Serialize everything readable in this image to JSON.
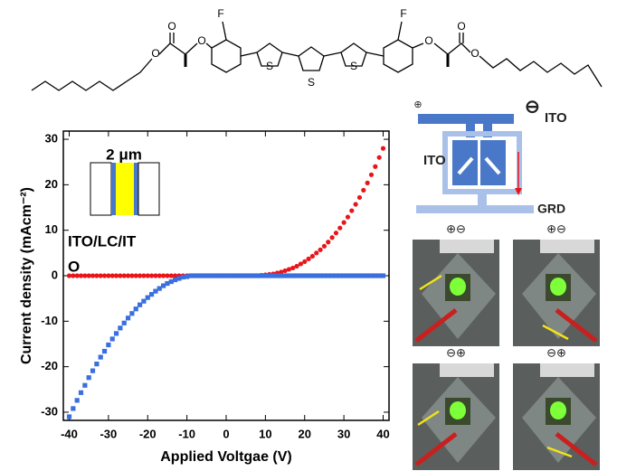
{
  "chart_data": {
    "type": "scatter",
    "xlabel": "Applied Voltgae (V)",
    "ylabel": "Current density (mAcm⁻²)",
    "inset_labels": [
      "2 μm",
      "ITO/LC/IT",
      "O"
    ],
    "x": [
      -40,
      -39,
      -38,
      -37,
      -36,
      -35,
      -34,
      -33,
      -32,
      -31,
      -30,
      -29,
      -28,
      -27,
      -26,
      -25,
      -24,
      -23,
      -22,
      -21,
      -20,
      -19,
      -18,
      -17,
      -16,
      -15,
      -14,
      -13,
      -12,
      -11,
      -10,
      -9,
      -8,
      -7,
      -6,
      -5,
      -4,
      -3,
      -2,
      -1,
      0,
      1,
      2,
      3,
      4,
      5,
      6,
      7,
      8,
      9,
      10,
      11,
      12,
      13,
      14,
      15,
      16,
      17,
      18,
      19,
      20,
      21,
      22,
      23,
      24,
      25,
      26,
      27,
      28,
      29,
      30,
      31,
      32,
      33,
      34,
      35,
      36,
      37,
      38,
      39,
      40
    ],
    "series": [
      {
        "color": "#e8151b",
        "marker": "circle",
        "values": [
          0,
          0,
          0,
          0,
          0,
          0,
          0,
          0,
          0,
          0,
          0,
          0,
          0,
          0,
          0,
          0,
          0,
          0,
          0,
          0,
          0,
          0,
          0,
          0,
          0,
          0,
          0,
          0,
          0,
          0,
          0,
          0,
          0,
          0,
          0,
          0,
          0,
          0,
          0,
          0,
          0,
          0,
          0,
          0,
          0,
          0,
          0,
          0,
          0,
          0.1,
          0.2,
          0.3,
          0.4,
          0.6,
          0.8,
          1.1,
          1.4,
          1.7,
          2.1,
          2.6,
          3.1,
          3.7,
          4.3,
          5.0,
          5.7,
          6.5,
          7.4,
          8.4,
          9.4,
          10.5,
          11.7,
          12.9,
          14.3,
          15.7,
          17.2,
          18.8,
          20.4,
          22.2,
          24.0,
          26.0,
          28.0
        ]
      },
      {
        "color": "#3a6fe0",
        "marker": "square",
        "values": [
          -31.0,
          -29.2,
          -27.4,
          -25.7,
          -24.1,
          -22.4,
          -20.9,
          -19.4,
          -17.9,
          -16.6,
          -15.2,
          -13.9,
          -12.7,
          -11.5,
          -10.4,
          -9.3,
          -8.3,
          -7.3,
          -6.4,
          -5.6,
          -4.8,
          -4.1,
          -3.4,
          -2.8,
          -2.2,
          -1.7,
          -1.3,
          -0.9,
          -0.6,
          -0.3,
          -0.2,
          0,
          0,
          0,
          0,
          0,
          0,
          0,
          0,
          0,
          0,
          0,
          0,
          0,
          0,
          0,
          0,
          0,
          0,
          0,
          0,
          0,
          0,
          0,
          0,
          0,
          0,
          0,
          0,
          0,
          0,
          0,
          0,
          0,
          0,
          0,
          0,
          0,
          0,
          0,
          0,
          0,
          0,
          0,
          0,
          0,
          0,
          0,
          0,
          0,
          0
        ]
      }
    ],
    "xlim": [
      -41.5,
      41.5
    ],
    "ylim": [
      -31.8,
      31.8
    ],
    "xticks": [
      -40,
      -30,
      -20,
      -10,
      0,
      10,
      20,
      30,
      40
    ],
    "yticks": [
      -30,
      -20,
      -10,
      0,
      10,
      20,
      30
    ]
  },
  "figure": {
    "molecule_atoms": [
      "O",
      "O",
      "O",
      "F",
      "S",
      "S",
      "S",
      "F",
      "O",
      "O",
      "O"
    ],
    "schematic_labels": [
      "⊕",
      "⊖",
      "ITO",
      "ITO",
      "GRD"
    ],
    "photo_labels": [
      "⊕⊖",
      "⊕⊖",
      "⊖⊕",
      "⊖⊕"
    ]
  }
}
